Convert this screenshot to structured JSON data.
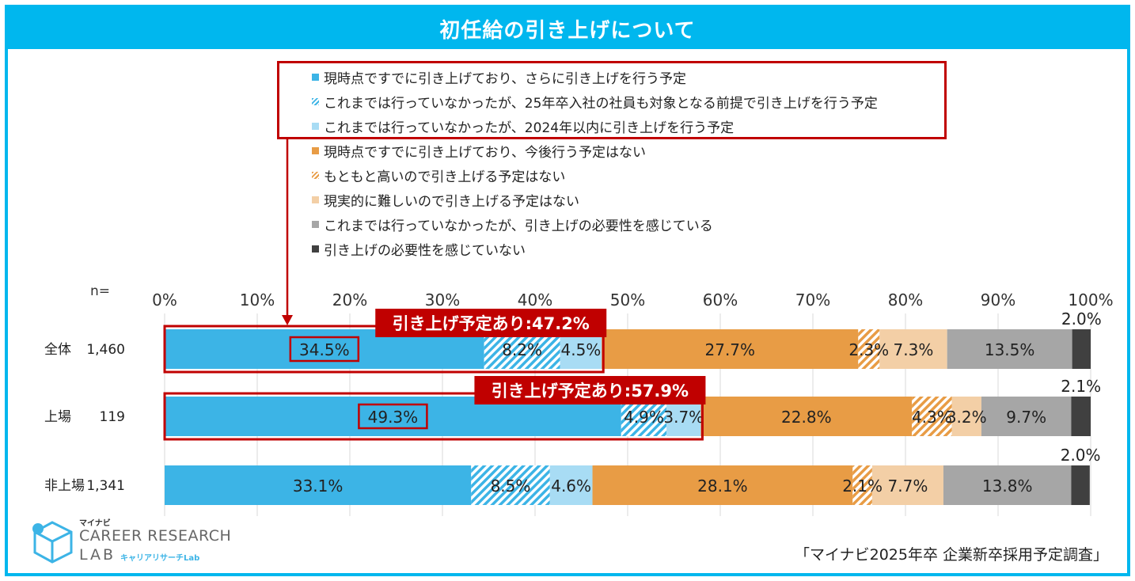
{
  "title": "初任給の引き上げについて",
  "chart_data": {
    "type": "stacked-bar-100",
    "n_label": "n=",
    "xticks": [
      "0%",
      "10%",
      "20%",
      "30%",
      "40%",
      "50%",
      "60%",
      "70%",
      "80%",
      "90%",
      "100%"
    ],
    "xlim": [
      0,
      100
    ],
    "series": [
      {
        "name": "現時点ですでに引き上げており、さらに引き上げを行う予定",
        "color": "#3cb4e6",
        "pattern": "solid"
      },
      {
        "name": "これまでは行っていなかったが、25年卒入社の社員も対象となる前提で引き上げを行う予定",
        "color": "#3cb4e6",
        "pattern": "hatch"
      },
      {
        "name": "これまでは行っていなかったが、2024年以内に引き上げを行う予定",
        "color": "#a8dcf4",
        "pattern": "solid"
      },
      {
        "name": "現時点ですでに引き上げており、今後行う予定はない",
        "color": "#e89c45",
        "pattern": "solid"
      },
      {
        "name": "もともと高いので引き上げる予定はない",
        "color": "#e89c45",
        "pattern": "hatch"
      },
      {
        "name": "現実的に難しいので引き上げる予定はない",
        "color": "#f3cfa6",
        "pattern": "solid"
      },
      {
        "name": "これまでは行っていなかったが、引き上げの必要性を感じている",
        "color": "#a6a6a6",
        "pattern": "solid"
      },
      {
        "name": "引き上げの必要性を感じていない",
        "color": "#404040",
        "pattern": "solid"
      }
    ],
    "rows": [
      {
        "label": "全体",
        "n": "1,460",
        "values": [
          34.5,
          8.2,
          4.5,
          27.7,
          2.3,
          7.3,
          13.5,
          2.0
        ],
        "labels": [
          "34.5%",
          "8.2%",
          "4.5%",
          "27.7%",
          "2.3%",
          "7.3%",
          "13.5%",
          "2.0%"
        ],
        "callout": "引き上げ予定あり:47.2%",
        "highlight": true
      },
      {
        "label": "上場",
        "n": "119",
        "values": [
          49.3,
          4.9,
          3.7,
          22.8,
          4.3,
          3.2,
          9.7,
          2.1
        ],
        "labels": [
          "49.3%",
          "4.9%",
          "3.7%",
          "22.8%",
          "4.3%",
          "3.2%",
          "9.7%",
          "2.1%"
        ],
        "callout": "引き上げ予定あり:57.9%",
        "highlight": true
      },
      {
        "label": "非上場",
        "n": "1,341",
        "values": [
          33.1,
          8.5,
          4.6,
          28.1,
          2.1,
          7.7,
          13.8,
          2.0
        ],
        "labels": [
          "33.1%",
          "8.5%",
          "4.6%",
          "28.1%",
          "2.1%",
          "7.7%",
          "13.8%",
          "2.0%"
        ],
        "callout": "",
        "highlight": false
      }
    ]
  },
  "logo": {
    "brand": "マイナビ",
    "line1": "CAREER RESEARCH",
    "line2": "LAB",
    "sub": "キャリアリサーチLab"
  },
  "source": "「マイナビ2025年卒 企業新卒採用予定調査」"
}
